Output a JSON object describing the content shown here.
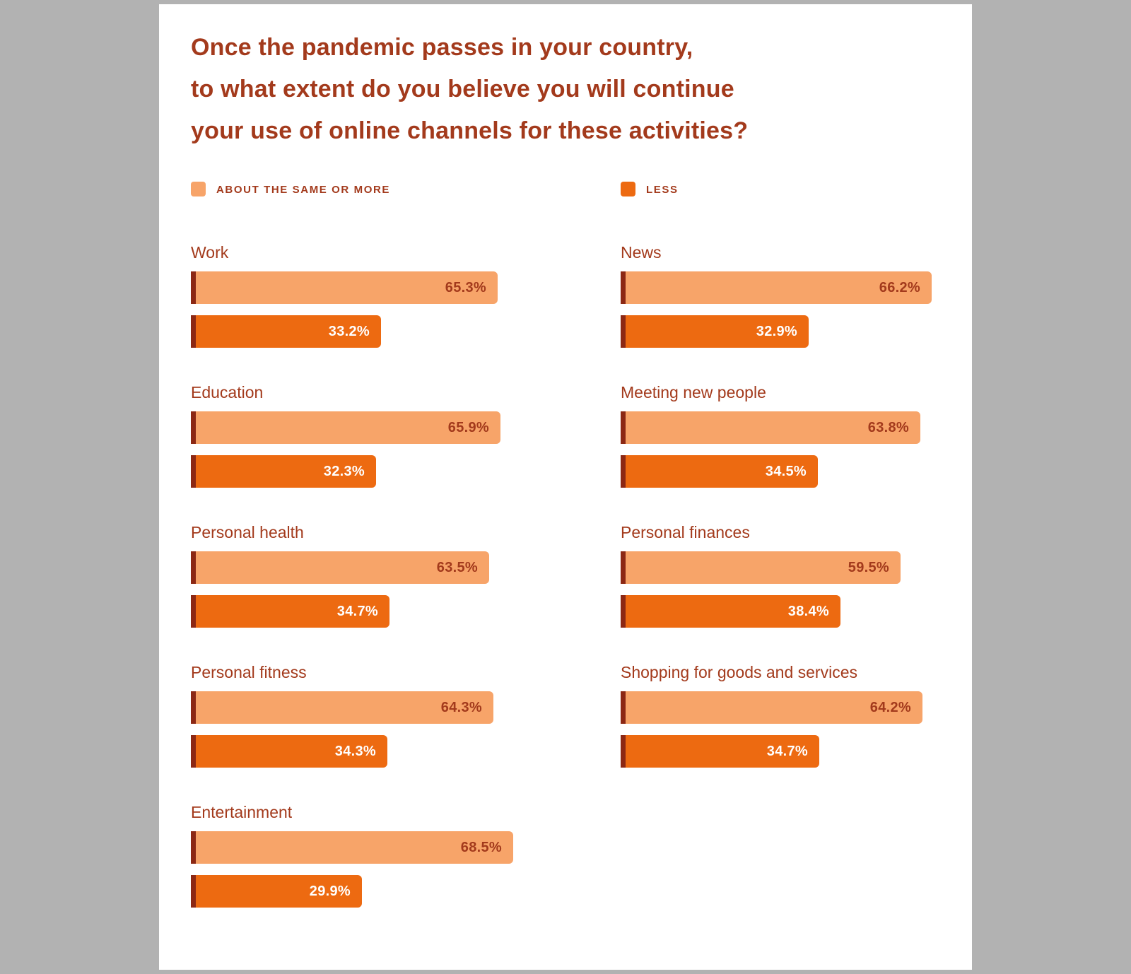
{
  "page": {
    "background_color": "#b2b2b2",
    "card_color": "#ffffff"
  },
  "chart_data": {
    "type": "bar",
    "title": "Once the pandemic passes in your country, to what extent do you believe you will continue your use of online channels for these activities?",
    "title_lines": [
      "Once the pandemic passes in your country,",
      "to what extent do you believe you will continue",
      "your use of online channels for these activities?"
    ],
    "legend": [
      {
        "label": "ABOUT THE SAME OR MORE",
        "color": "#f7a469"
      },
      {
        "label": "LESS",
        "color": "#ed6a11"
      }
    ],
    "unit": "%",
    "layout": "two-column grouped horizontal bars, legend top, no gridlines, value labels inside bars",
    "colors": {
      "title_text": "#a33a1c",
      "same_or_more_bar": "#f7a469",
      "less_bar": "#ed6a11",
      "axis_stripe": "#8c2814",
      "label_on_light": "#a33a1c",
      "label_on_dark": "#ffffff"
    },
    "series_names": [
      "About the same or more",
      "Less"
    ],
    "columns": {
      "left": [
        {
          "category": "Work",
          "same_or_more": 65.3,
          "same_or_more_label": "65.3%",
          "less": 33.2,
          "less_label": "33.2%"
        },
        {
          "category": "Education",
          "same_or_more": 65.9,
          "same_or_more_label": "65.9%",
          "less": 32.3,
          "less_label": "32.3%"
        },
        {
          "category": "Personal health",
          "same_or_more": 63.5,
          "same_or_more_label": "63.5%",
          "less": 34.7,
          "less_label": "34.7%"
        },
        {
          "category": "Personal fitness",
          "same_or_more": 64.3,
          "same_or_more_label": "64.3%",
          "less": 34.3,
          "less_label": "34.3%"
        },
        {
          "category": "Entertainment",
          "same_or_more": 68.5,
          "same_or_more_label": "68.5%",
          "less": 29.9,
          "less_label": "29.9%"
        }
      ],
      "right": [
        {
          "category": "News",
          "same_or_more": 66.2,
          "same_or_more_label": "66.2%",
          "less": 32.9,
          "less_label": "32.9%"
        },
        {
          "category": "Meeting new people",
          "same_or_more": 63.8,
          "same_or_more_label": "63.8%",
          "less": 34.5,
          "less_label": "34.5%"
        },
        {
          "category": "Personal finances",
          "same_or_more": 59.5,
          "same_or_more_label": "59.5%",
          "less": 38.4,
          "less_label": "38.4%"
        },
        {
          "category": "Shopping for goods and services",
          "same_or_more": 64.2,
          "same_or_more_label": "64.2%",
          "less": 34.7,
          "less_label": "34.7%"
        }
      ]
    }
  }
}
